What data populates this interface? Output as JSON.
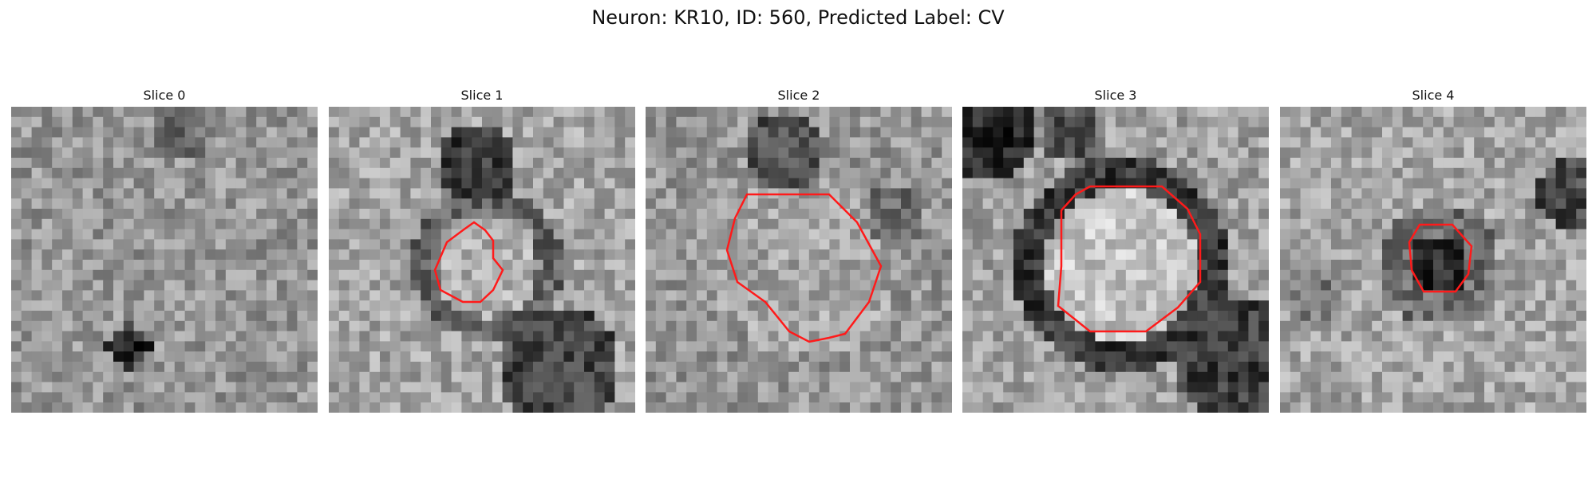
{
  "figure": {
    "title": "Neuron: KR10, ID: 560, Predicted Label: CV",
    "contour_color": "#ff1a1a"
  },
  "panels": [
    {
      "title": "Slice 0"
    },
    {
      "title": "Slice 1"
    },
    {
      "title": "Slice 2"
    },
    {
      "title": "Slice 3"
    },
    {
      "title": "Slice 4"
    }
  ]
}
